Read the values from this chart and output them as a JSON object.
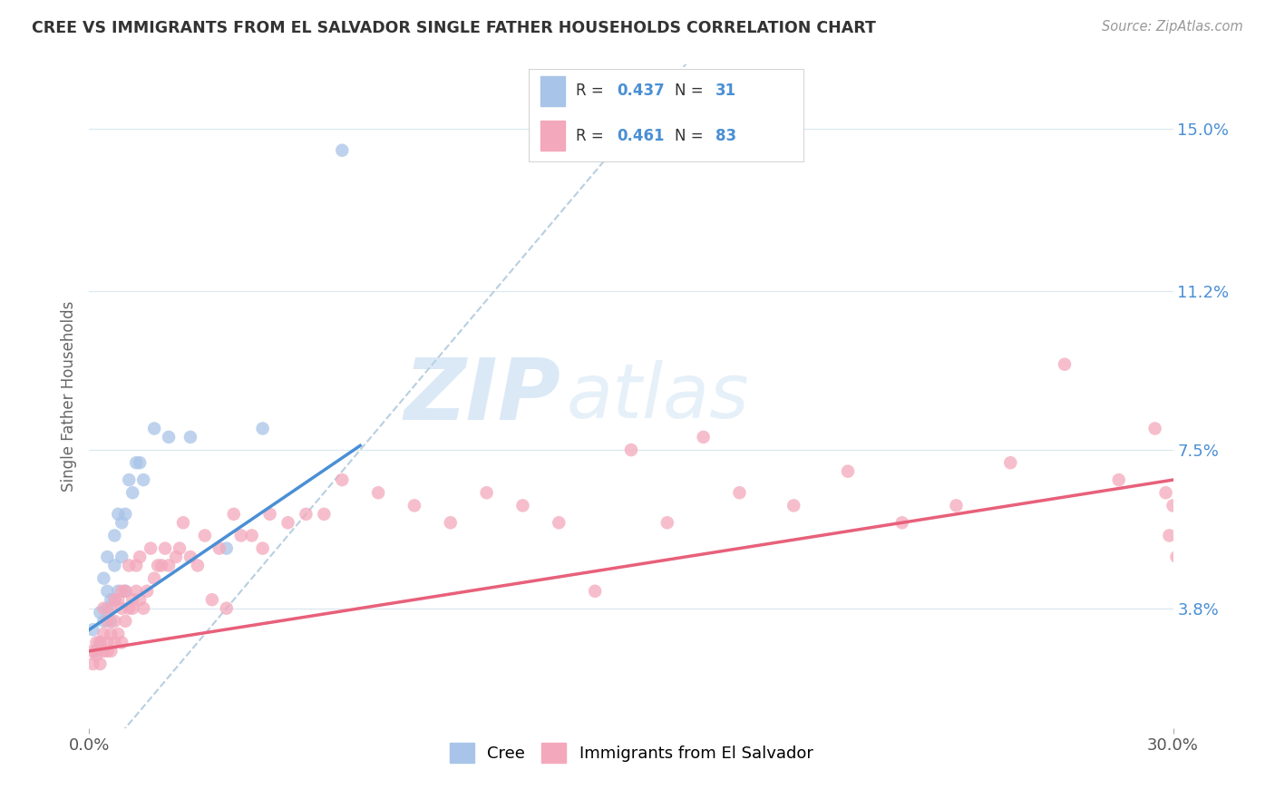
{
  "title": "CREE VS IMMIGRANTS FROM EL SALVADOR SINGLE FATHER HOUSEHOLDS CORRELATION CHART",
  "source": "Source: ZipAtlas.com",
  "ylabel": "Single Father Households",
  "ytick_labels": [
    "3.8%",
    "7.5%",
    "11.2%",
    "15.0%"
  ],
  "ytick_values": [
    0.038,
    0.075,
    0.112,
    0.15
  ],
  "xlim": [
    0.0,
    0.3
  ],
  "ylim": [
    0.01,
    0.165
  ],
  "watermark_top": "ZIP",
  "watermark_bot": "atlas",
  "legend_cree_R": "0.437",
  "legend_cree_N": "31",
  "legend_salv_R": "0.461",
  "legend_salv_N": "83",
  "cree_color": "#a8c4e8",
  "salv_color": "#f4a8bc",
  "line_cree_color": "#4a8fd4",
  "line_salv_color": "#e8607a",
  "diag_color": "#b8cfe0",
  "background_color": "#ffffff",
  "grid_color": "#dce8f0",
  "cree_points_x": [
    0.001,
    0.002,
    0.003,
    0.003,
    0.004,
    0.004,
    0.005,
    0.005,
    0.005,
    0.006,
    0.006,
    0.007,
    0.007,
    0.007,
    0.008,
    0.008,
    0.009,
    0.009,
    0.01,
    0.01,
    0.011,
    0.012,
    0.013,
    0.014,
    0.015,
    0.018,
    0.022,
    0.028,
    0.038,
    0.048,
    0.07
  ],
  "cree_points_y": [
    0.033,
    0.028,
    0.03,
    0.037,
    0.035,
    0.045,
    0.038,
    0.042,
    0.05,
    0.035,
    0.04,
    0.04,
    0.048,
    0.055,
    0.042,
    0.06,
    0.05,
    0.058,
    0.06,
    0.042,
    0.068,
    0.065,
    0.072,
    0.072,
    0.068,
    0.08,
    0.078,
    0.078,
    0.052,
    0.08,
    0.145
  ],
  "salv_points_x": [
    0.001,
    0.001,
    0.002,
    0.002,
    0.003,
    0.003,
    0.004,
    0.004,
    0.004,
    0.005,
    0.005,
    0.005,
    0.006,
    0.006,
    0.006,
    0.007,
    0.007,
    0.007,
    0.008,
    0.008,
    0.009,
    0.009,
    0.009,
    0.01,
    0.01,
    0.011,
    0.011,
    0.012,
    0.012,
    0.013,
    0.013,
    0.014,
    0.014,
    0.015,
    0.016,
    0.017,
    0.018,
    0.019,
    0.02,
    0.021,
    0.022,
    0.024,
    0.025,
    0.026,
    0.028,
    0.03,
    0.032,
    0.034,
    0.036,
    0.038,
    0.04,
    0.042,
    0.045,
    0.048,
    0.05,
    0.055,
    0.06,
    0.065,
    0.07,
    0.08,
    0.09,
    0.1,
    0.11,
    0.12,
    0.13,
    0.14,
    0.15,
    0.16,
    0.17,
    0.18,
    0.195,
    0.21,
    0.225,
    0.24,
    0.255,
    0.27,
    0.285,
    0.295,
    0.298,
    0.299,
    0.3,
    0.301,
    0.302
  ],
  "salv_points_y": [
    0.028,
    0.025,
    0.027,
    0.03,
    0.025,
    0.03,
    0.028,
    0.032,
    0.038,
    0.028,
    0.03,
    0.035,
    0.028,
    0.032,
    0.038,
    0.03,
    0.035,
    0.04,
    0.032,
    0.04,
    0.03,
    0.038,
    0.042,
    0.035,
    0.042,
    0.038,
    0.048,
    0.038,
    0.04,
    0.042,
    0.048,
    0.04,
    0.05,
    0.038,
    0.042,
    0.052,
    0.045,
    0.048,
    0.048,
    0.052,
    0.048,
    0.05,
    0.052,
    0.058,
    0.05,
    0.048,
    0.055,
    0.04,
    0.052,
    0.038,
    0.06,
    0.055,
    0.055,
    0.052,
    0.06,
    0.058,
    0.06,
    0.06,
    0.068,
    0.065,
    0.062,
    0.058,
    0.065,
    0.062,
    0.058,
    0.042,
    0.075,
    0.058,
    0.078,
    0.065,
    0.062,
    0.07,
    0.058,
    0.062,
    0.072,
    0.095,
    0.068,
    0.08,
    0.065,
    0.055,
    0.062,
    0.05,
    0.06
  ],
  "cree_line_x": [
    0.0,
    0.075
  ],
  "cree_line_y": [
    0.033,
    0.076
  ],
  "salv_line_x": [
    0.0,
    0.3
  ],
  "salv_line_y": [
    0.028,
    0.068
  ]
}
